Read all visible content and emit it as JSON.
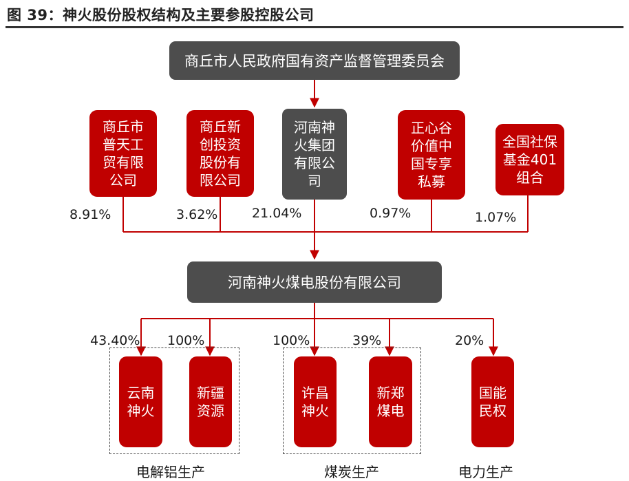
{
  "figure": {
    "title": "图 39：神火股份股权结构及主要参股控股公司"
  },
  "nodes": {
    "government": "商丘市人民政府国有资产监督管理委员会",
    "shangqiu_putian": "商丘市\n普天工\n贸有限\n公司",
    "shangqiu_xinchuang": "商丘新\n创投资\n股份有\n限公司",
    "henan_shenhuo_group": "河南神\n火集团\n有限公\n司",
    "zhengxingu": "正心谷\n价值中\n国专享\n私募",
    "social_security": "全国社保\n基金401\n组合",
    "company": "河南神火煤电股份有限公司",
    "yunnan_shenhuo": "云南\n神火",
    "xinjiang_resources": "新疆\n资源",
    "xuchang_shenhuo": "许昌\n神火",
    "xinzheng_coal_power": "新郑\n煤电",
    "guoneng_minquan": "国能\n民权"
  },
  "shareholding_pct": {
    "shangqiu_putian": "8.91%",
    "shangqiu_xinchuang": "3.62%",
    "henan_shenhuo_group": "21.04%",
    "zhengxingu": "0.97%",
    "social_security": "1.07%"
  },
  "subsidiary_pct": {
    "yunnan_shenhuo": "43.40%",
    "xinjiang_resources": "100%",
    "xuchang_shenhuo": "100%",
    "xinzheng_coal_power": "39%",
    "guoneng_minquan": "20%"
  },
  "segments": {
    "aluminum": "电解铝生产",
    "coal": "煤炭生产",
    "power": "电力生产"
  },
  "colors": {
    "red": "#c00000",
    "gray": "#4d4d4d",
    "line": "#c00000"
  }
}
